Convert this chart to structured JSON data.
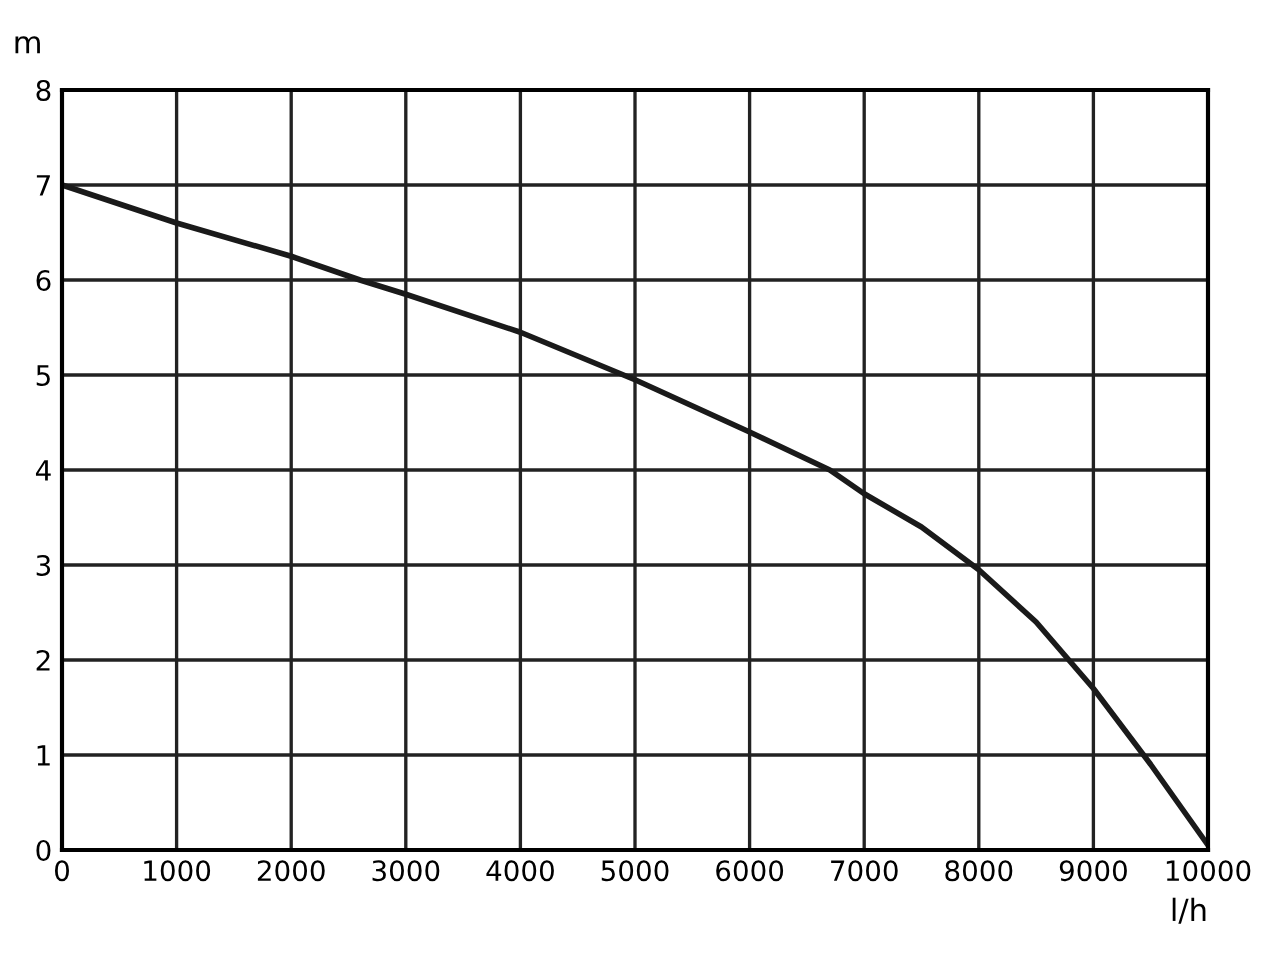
{
  "chart_data": {
    "type": "line",
    "xlabel": "l/h",
    "ylabel": "m",
    "x": [
      0,
      1000,
      2000,
      2600,
      3000,
      4000,
      5000,
      6000,
      6700,
      7000,
      7500,
      8000,
      8500,
      9000,
      9500,
      10000
    ],
    "series": [
      {
        "color": "#1a1a1a",
        "values": [
          7.0,
          6.6,
          6.25,
          6.0,
          5.85,
          5.45,
          4.95,
          4.4,
          4.0,
          3.75,
          3.4,
          2.95,
          2.4,
          1.7,
          0.9,
          0.05
        ]
      }
    ],
    "xlim": [
      0,
      10000
    ],
    "ylim": [
      0,
      8
    ],
    "xticks": [
      0,
      1000,
      2000,
      3000,
      4000,
      5000,
      6000,
      7000,
      8000,
      9000,
      10000
    ],
    "yticks": [
      0,
      1,
      2,
      3,
      4,
      5,
      6,
      7,
      8
    ],
    "grid": true,
    "legend": false,
    "marker": "none",
    "line_style": "solid"
  }
}
